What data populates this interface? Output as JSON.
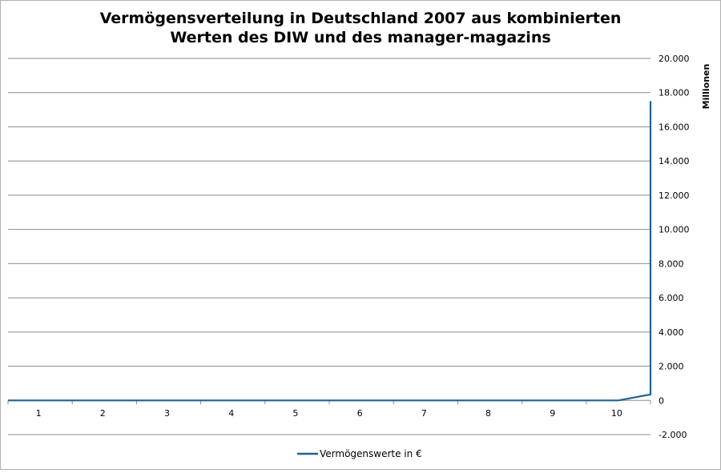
{
  "chart_data": {
    "type": "line",
    "title_lines": [
      "Vermögensverteilung  in Deutschland 2007 aus kombinierten",
      "Werten des DIW und des manager-magazins"
    ],
    "xlabel": "",
    "ylabel": "Millionen",
    "categories": [
      "1",
      "2",
      "3",
      "4",
      "5",
      "6",
      "7",
      "8",
      "9",
      "10"
    ],
    "ylim": [
      -2000,
      20000
    ],
    "y_ticks": [
      -2000,
      0,
      2000,
      4000,
      6000,
      8000,
      10000,
      12000,
      14000,
      16000,
      18000,
      20000
    ],
    "y_tick_labels": [
      "-2.000",
      "0",
      "2.000",
      "4.000",
      "6.000",
      "8.000",
      "10.000",
      "12.000",
      "14.000",
      "16.000",
      "18.000",
      "20.000"
    ],
    "y_axis_side": "right",
    "grid": true,
    "legend_position": "bottom",
    "series": [
      {
        "name": "Vermögenswerte  in €",
        "color": "#1f6391",
        "x": [
          0.5,
          1,
          2,
          3,
          4,
          5,
          6,
          7,
          8,
          9,
          10,
          10.5,
          10.5
        ],
        "values": [
          0,
          0,
          0,
          0,
          0,
          0,
          0,
          0,
          0,
          0,
          0,
          350,
          17500
        ]
      }
    ]
  }
}
